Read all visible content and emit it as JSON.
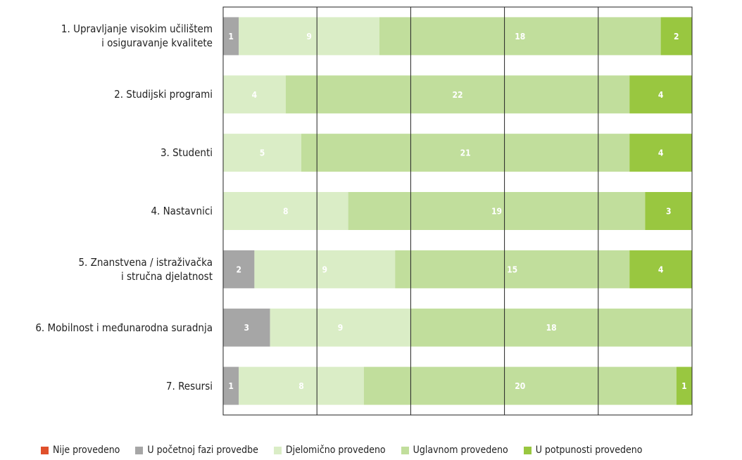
{
  "chart_data": {
    "type": "stacked_bar_horizontal",
    "categories": [
      "1. Upravljanje visokim učilištem\ni osiguravanje kvalitete",
      "2. Studijski programi",
      "3. Studenti",
      "4. Nastavnici",
      "5. Znanstvena / istraživačka\ni stručna djelatnost",
      "6. Mobilnost i međunarodna suradnja",
      "7. Resursi"
    ],
    "series": [
      {
        "name": "Nije provedeno",
        "color": "#e0502b",
        "values": [
          0,
          0,
          0,
          0,
          0,
          0,
          0
        ]
      },
      {
        "name": "U početnoj fazi provedbe",
        "color": "#a6a6a6",
        "values": [
          1,
          0,
          0,
          0,
          2,
          3,
          1
        ]
      },
      {
        "name": "Djelomično provedeno",
        "color": "#daedc6",
        "values": [
          9,
          4,
          5,
          8,
          9,
          9,
          8
        ]
      },
      {
        "name": "Uglavnom provedeno",
        "color": "#c1de9c",
        "values": [
          18,
          22,
          21,
          19,
          15,
          18,
          20
        ]
      },
      {
        "name": "U potpunosti provedeno",
        "color": "#99c740",
        "values": [
          2,
          4,
          4,
          3,
          4,
          0,
          1
        ]
      }
    ],
    "xlim": [
      0,
      30
    ],
    "xticks": [
      0,
      6,
      12,
      18,
      24,
      30
    ],
    "grid": true,
    "legend": "bottom"
  }
}
